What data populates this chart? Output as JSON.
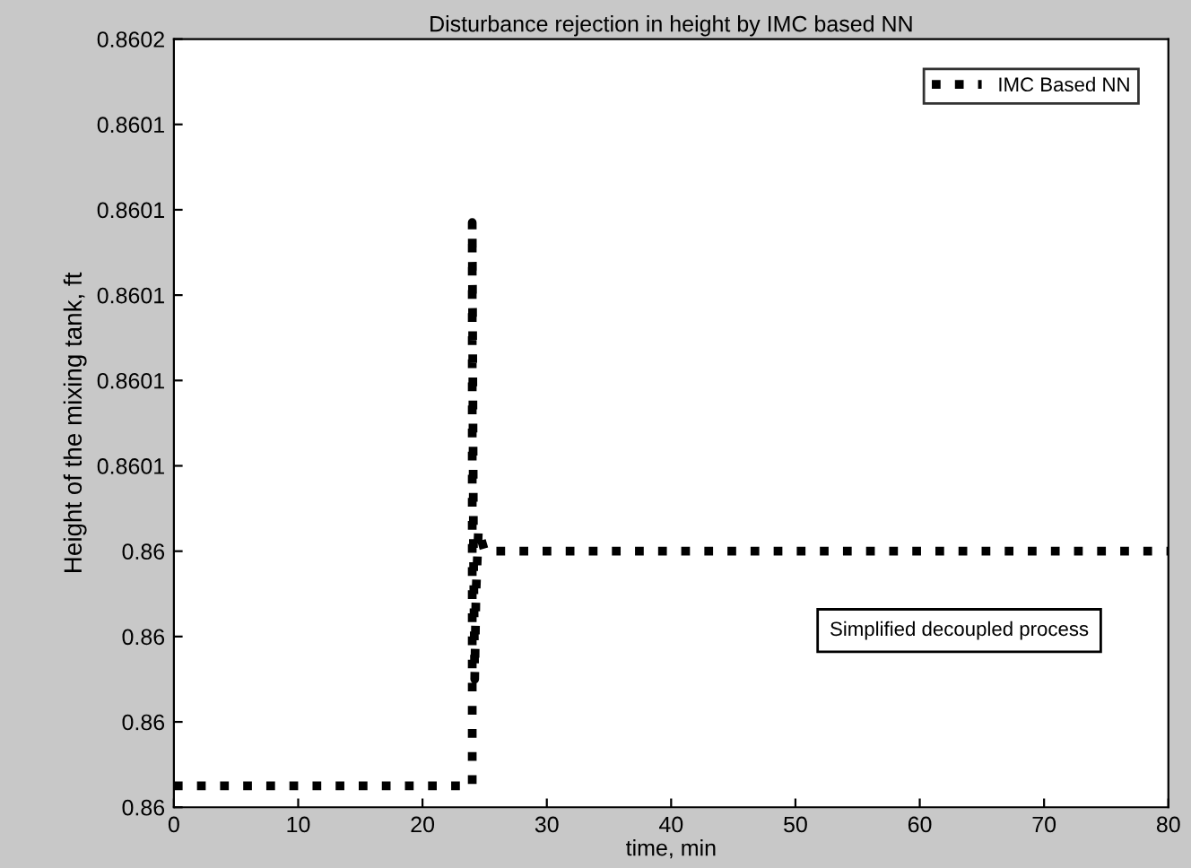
{
  "chart_data": {
    "type": "line",
    "title": "Disturbance rejection in height by IMC based NN",
    "xlabel": "time, min",
    "ylabel": "Height of the mixing tank, ft",
    "series": [
      {
        "name": "IMC Based NN",
        "color": "#000000",
        "x": [
          0,
          24,
          24,
          24.1,
          24.2,
          24.3,
          24.5,
          25,
          80
        ],
        "values": [
          0.859985,
          0.859985,
          0.860117,
          0.86004,
          0.86001,
          0.86003,
          0.860045,
          0.86004,
          0.86004
        ]
      }
    ],
    "xlim": [
      0,
      80
    ],
    "xticks": [
      0,
      10,
      20,
      30,
      40,
      50,
      60,
      70,
      80
    ],
    "ylim": [
      0.85998,
      0.86016
    ],
    "yticks": [
      {
        "value": 0.85998,
        "label": "0.86"
      },
      {
        "value": 0.86,
        "label": "0.86"
      },
      {
        "value": 0.86002,
        "label": "0.86"
      },
      {
        "value": 0.86004,
        "label": "0.86"
      },
      {
        "value": 0.86006,
        "label": "0.8601"
      },
      {
        "value": 0.86008,
        "label": "0.8601"
      },
      {
        "value": 0.8601,
        "label": "0.8601"
      },
      {
        "value": 0.86012,
        "label": "0.8601"
      },
      {
        "value": 0.86014,
        "label": "0.8601"
      },
      {
        "value": 0.86016,
        "label": "0.8602"
      }
    ],
    "annotations": [
      "Simplified decoupled process"
    ],
    "legend": "top right",
    "grid": false,
    "line_style": "dotted",
    "marker": "none"
  }
}
